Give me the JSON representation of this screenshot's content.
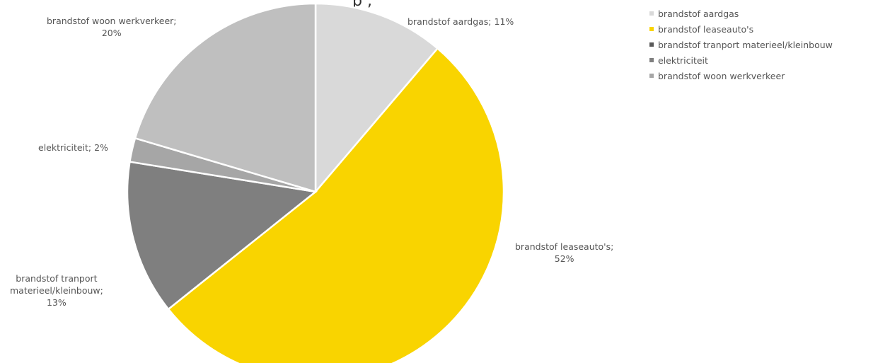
{
  "chart_data": {
    "type": "pie",
    "title_fragment": "p ,",
    "categories": [
      "brandstof aardgas",
      "brandstof leaseauto's",
      "brandstof tranport materieel/kleinbouw",
      "elektriciteit",
      "brandstof woon werkverkeer"
    ],
    "values": [
      11,
      52,
      13,
      2,
      20
    ],
    "colors": [
      "#d9d9d9",
      "#f9d400",
      "#7f7f7f",
      "#a6a6a6",
      "#bfbfbf"
    ],
    "data_labels": [
      {
        "lines": [
          "brandstof aardgas; 11%"
        ]
      },
      {
        "lines": [
          "brandstof leaseauto's;",
          "52%"
        ]
      },
      {
        "lines": [
          "brandstof tranport",
          "materieel/kleinbouw;",
          "13%"
        ]
      },
      {
        "lines": [
          "elektriciteit; 2%"
        ]
      },
      {
        "lines": [
          "brandstof woon werkverkeer;",
          "20%"
        ]
      }
    ],
    "legend": {
      "placement": "top-right",
      "entries": [
        "brandstof aardgas",
        "brandstof leaseauto's",
        "brandstof tranport materieel/kleinbouw",
        "elektriciteit",
        "brandstof woon werkverkeer"
      ]
    }
  }
}
